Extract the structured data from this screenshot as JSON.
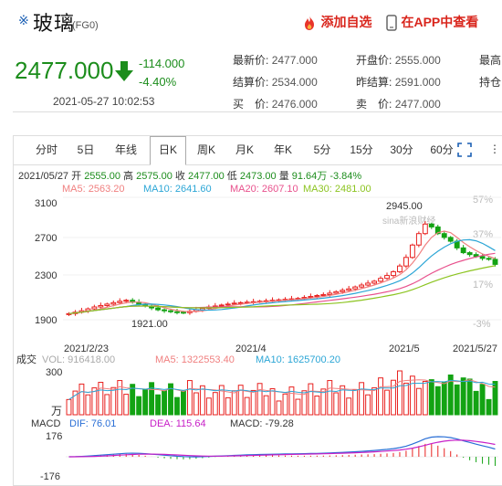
{
  "header": {
    "title_mark": "※",
    "title": "玻璃",
    "code": "(FG0)",
    "add_watch": "添加自选",
    "app_view": "在APP中查看"
  },
  "quote": {
    "price": "2477.000",
    "change": "-114.000",
    "change_pct": "-4.40%",
    "datetime": "2021-05-27 10:02:53",
    "fields": [
      {
        "label": "最新价:",
        "value": "2477.000"
      },
      {
        "label": "开盘价:",
        "value": "2555.000"
      },
      {
        "label": "最高",
        "value": ""
      },
      {
        "label": "结算价:",
        "value": "2534.000"
      },
      {
        "label": "昨结算:",
        "value": "2591.000"
      },
      {
        "label": "持仓",
        "value": ""
      },
      {
        "label": "买　价:",
        "value": "2476.000"
      },
      {
        "label": "卖　价:",
        "value": "2477.000"
      }
    ]
  },
  "tabs": [
    "分时",
    "5日",
    "年线",
    "日K",
    "周K",
    "月K",
    "年K",
    "5分",
    "15分",
    "30分",
    "60分"
  ],
  "selected_tab": "日K",
  "kinfo": {
    "date": "2021/05/27",
    "open_label": "开",
    "open": "2555.00",
    "high_label": "高",
    "high": "2575.00",
    "close_label": "收",
    "close": "2477.00",
    "low_label": "低",
    "low": "2473.00",
    "vol_label": "量",
    "vol": "91.64万",
    "pct": "-3.84%"
  },
  "ma": {
    "ma5": "MA5: 2563.20",
    "ma10": "MA10: 2641.60",
    "ma20": "MA20: 2607.10",
    "ma30": "MA30: 2481.00"
  },
  "colors": {
    "up": "#e8211f",
    "down": "#13a313",
    "ma5": "#f08080",
    "ma10": "#2ca6d6",
    "ma20": "#e8508c",
    "ma30": "#8cc420"
  },
  "chart_data": {
    "type": "candlestick",
    "price_axis": {
      "ticks": [
        "3100",
        "2700",
        "2300",
        "1900"
      ],
      "ylim": [
        1800,
        3200
      ]
    },
    "pct_axis": {
      "ticks": [
        "57%",
        "37%",
        "17%",
        "-3%"
      ]
    },
    "annotations": {
      "high": "2945.00",
      "low": "1921.00",
      "watermark": "sina新浪财经"
    },
    "dates": [
      "2021/2/23",
      "2021/4",
      "2021/5",
      "2021/5/27"
    ],
    "closes": [
      1960,
      1975,
      1990,
      2010,
      2030,
      2045,
      2060,
      2075,
      2090,
      2100,
      2080,
      2060,
      2040,
      2020,
      2000,
      1990,
      1980,
      1975,
      1970,
      1985,
      2000,
      2015,
      2030,
      2040,
      2050,
      2060,
      2070,
      2075,
      2080,
      2085,
      2090,
      2095,
      2100,
      2105,
      2110,
      2115,
      2120,
      2130,
      2140,
      2150,
      2160,
      2175,
      2190,
      2205,
      2220,
      2240,
      2260,
      2280,
      2300,
      2330,
      2360,
      2400,
      2460,
      2550,
      2680,
      2800,
      2900,
      2870,
      2800,
      2760,
      2720,
      2650,
      2600,
      2580,
      2560,
      2540,
      2530,
      2477
    ],
    "volume": {
      "label": "成交",
      "vol": "VOL: 916418.00",
      "ma5": "MA5: 1322553.40",
      "ma10": "MA10: 1625700.20",
      "ticks": [
        "300",
        "万"
      ]
    },
    "macd": {
      "label": "MACD",
      "dif": "DIF: 76.01",
      "dea": "DEA: 115.64",
      "macd": "MACD: -79.28",
      "ticks": [
        "176",
        "-176"
      ]
    }
  }
}
